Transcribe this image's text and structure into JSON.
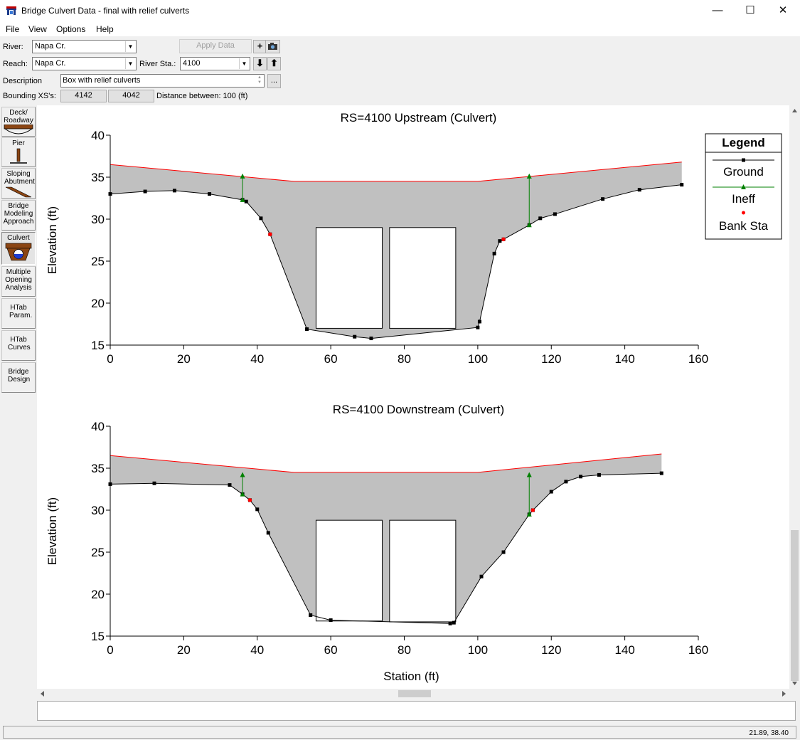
{
  "window": {
    "title": "Bridge Culvert Data - final with relief culverts",
    "minimize": "—",
    "maximize": "☐",
    "close": "✕"
  },
  "menu": {
    "items": [
      "File",
      "View",
      "Options",
      "Help"
    ]
  },
  "toolbar": {
    "river_label": "River:",
    "river_value": "Napa Cr.",
    "reach_label": "Reach:",
    "reach_value": "Napa Cr.",
    "river_sta_label": "River Sta.:",
    "river_sta_value": "4100",
    "apply_data_label": "Apply Data",
    "description_label": "Description",
    "description_value": "Box with relief culverts",
    "description_more": "...",
    "bounding_label": "Bounding XS's:",
    "bounding_up": "4142",
    "bounding_down": "4042",
    "distance_text": "Distance between: 100 (ft)"
  },
  "sidebar": {
    "items": [
      {
        "label": "Deck/ Roadway",
        "icon": "deck-roadway-icon"
      },
      {
        "label": "Pier",
        "icon": "pier-icon"
      },
      {
        "label": "Sloping Abutment",
        "icon": "sloping-abutment-icon"
      },
      {
        "label": "Bridge Modeling Approach",
        "icon": ""
      },
      {
        "label": "Culvert",
        "icon": "culvert-icon"
      },
      {
        "label": "Multiple Opening Analysis",
        "icon": ""
      },
      {
        "label": "HTab Param.",
        "icon": ""
      },
      {
        "label": "HTab Curves",
        "icon": ""
      },
      {
        "label": "Bridge Design",
        "icon": ""
      }
    ]
  },
  "status": {
    "coords": "21.89, 38.40"
  },
  "colors": {
    "fill": "#c0c0c0",
    "ground": "#000000",
    "deck": "#ff0000",
    "ineff": "#008000",
    "bank": "#ff0000"
  },
  "chart_data": [
    {
      "type": "area",
      "title": "RS=4100    Upstream  (Culvert)",
      "xlabel": "",
      "ylabel": "Elevation (ft)",
      "xlim": [
        0,
        160
      ],
      "ylim": [
        15,
        40
      ],
      "xticks": [
        0,
        20,
        40,
        60,
        80,
        100,
        120,
        140,
        160
      ],
      "yticks": [
        15,
        20,
        25,
        30,
        35,
        40
      ],
      "ground": [
        [
          0,
          33
        ],
        [
          9.5,
          33.3
        ],
        [
          17.5,
          33.4
        ],
        [
          27,
          33
        ],
        [
          36,
          32.3
        ],
        [
          37,
          32.1
        ],
        [
          41,
          30.1
        ],
        [
          43.5,
          28.2
        ],
        [
          53.5,
          16.9
        ],
        [
          66.5,
          16
        ],
        [
          71,
          15.8
        ],
        [
          100,
          17.1
        ],
        [
          100.5,
          17.8
        ],
        [
          104.5,
          25.9
        ],
        [
          106,
          27.4
        ],
        [
          107,
          27.6
        ],
        [
          114,
          29.3
        ],
        [
          117,
          30.1
        ],
        [
          121,
          30.6
        ],
        [
          134,
          32.4
        ],
        [
          144,
          33.5
        ],
        [
          155.5,
          34.1
        ]
      ],
      "deck": [
        [
          0,
          36.5
        ],
        [
          50,
          34.5
        ],
        [
          100,
          34.5
        ],
        [
          155.5,
          36.8
        ]
      ],
      "culverts": [
        [
          56,
          17,
          74,
          29
        ],
        [
          76,
          17,
          94,
          29
        ]
      ],
      "ineff": [
        [
          36,
          32.3,
          35.1
        ],
        [
          114,
          29.3,
          35.1
        ]
      ],
      "bank_sta": [
        [
          43.5,
          28.2
        ],
        [
          107,
          27.6
        ]
      ],
      "legend": {
        "title": "Legend",
        "entries": [
          "Ground",
          "Ineff",
          "Bank Sta"
        ],
        "position": "top-right"
      }
    },
    {
      "type": "area",
      "title": "RS=4100    Downstream  (Culvert)",
      "xlabel": "Station (ft)",
      "ylabel": "Elevation (ft)",
      "xlim": [
        0,
        160
      ],
      "ylim": [
        15,
        40
      ],
      "xticks": [
        0,
        20,
        40,
        60,
        80,
        100,
        120,
        140,
        160
      ],
      "yticks": [
        15,
        20,
        25,
        30,
        35,
        40
      ],
      "ground": [
        [
          0,
          33.1
        ],
        [
          12,
          33.2
        ],
        [
          32.5,
          33
        ],
        [
          36,
          31.9
        ],
        [
          38,
          31.2
        ],
        [
          40,
          30.1
        ],
        [
          43,
          27.3
        ],
        [
          54.5,
          17.5
        ],
        [
          60,
          16.9
        ],
        [
          92.5,
          16.5
        ],
        [
          93.5,
          16.6
        ],
        [
          101,
          22.1
        ],
        [
          107,
          25
        ],
        [
          114,
          29.5
        ],
        [
          115,
          30
        ],
        [
          120,
          32.2
        ],
        [
          124,
          33.4
        ],
        [
          128,
          34
        ],
        [
          133,
          34.2
        ],
        [
          150,
          34.4
        ]
      ],
      "deck": [
        [
          0,
          36.5
        ],
        [
          50,
          34.5
        ],
        [
          100,
          34.5
        ],
        [
          150,
          36.7
        ]
      ],
      "culverts": [
        [
          56,
          16.8,
          74,
          28.8
        ],
        [
          76,
          16.7,
          94,
          28.8
        ]
      ],
      "ineff": [
        [
          36,
          31.9,
          34.2
        ],
        [
          114,
          29.5,
          34.2
        ]
      ],
      "bank_sta": [
        [
          38,
          31.2
        ],
        [
          115,
          30
        ]
      ]
    }
  ]
}
